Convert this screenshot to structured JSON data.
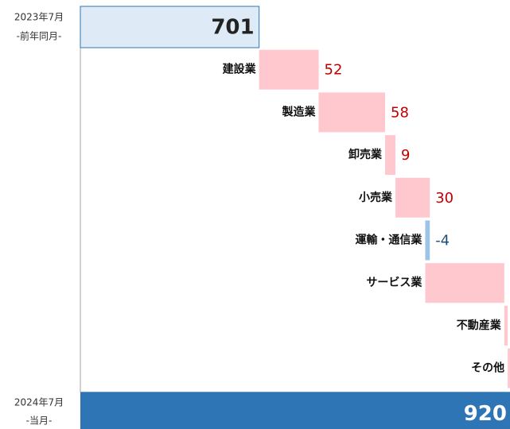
{
  "chart_data": {
    "type": "waterfall",
    "start": {
      "label": [
        "2023年7月",
        "-前年同月-"
      ],
      "value": 701
    },
    "end": {
      "label": [
        "2024年7月",
        "-当月-"
      ],
      "value": 920
    },
    "categories": [
      "建設業",
      "製造業",
      "卸売業",
      "小売業",
      "運輸・通信業",
      "サービス業",
      "不動産業",
      "その他"
    ],
    "values": [
      52,
      58,
      9,
      30,
      -4,
      69,
      3,
      2
    ],
    "xlim": [
      545,
      920
    ],
    "colors": {
      "start": "#deebf7",
      "end": "#2e75b6",
      "increase": "#ffc7ce",
      "decrease": "#9dc3e6"
    }
  }
}
